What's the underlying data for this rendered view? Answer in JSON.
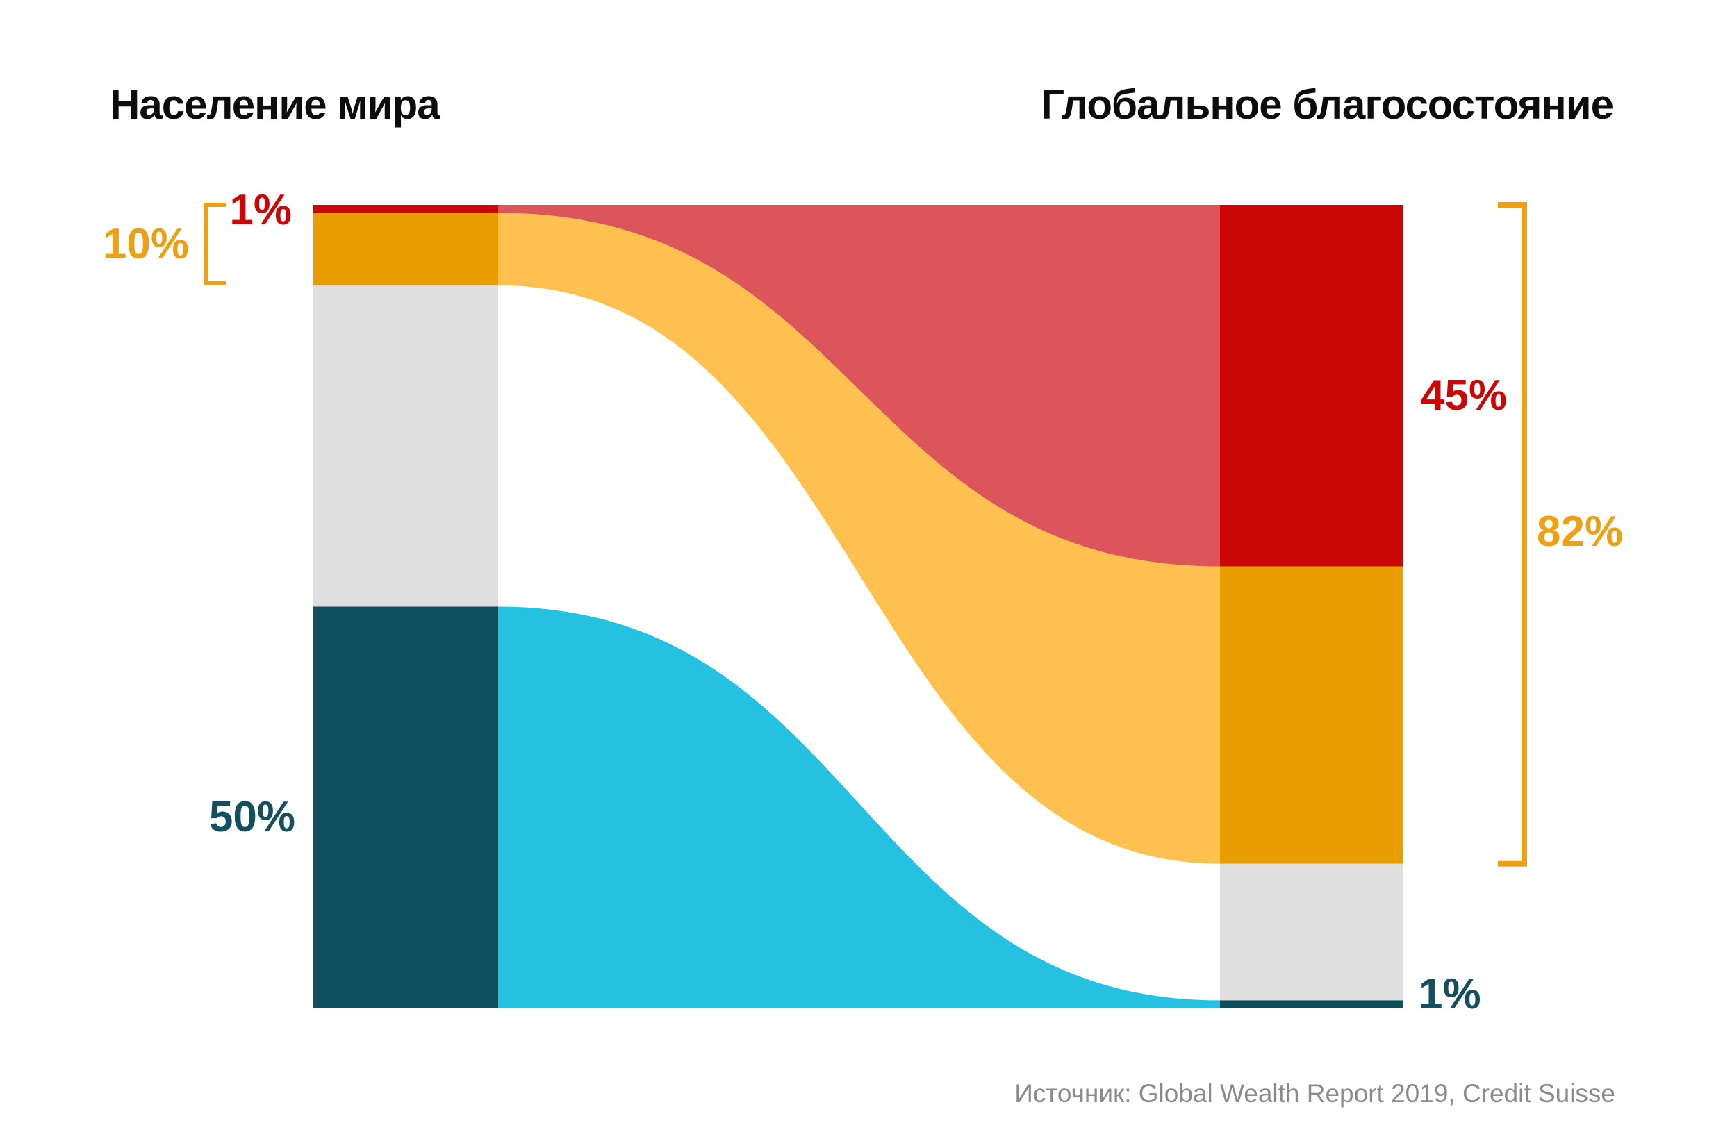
{
  "chart_data": {
    "type": "sankey",
    "title_left": "Население мира",
    "title_right": "Глобальное благосостояние",
    "source": "Источник: Global Wealth Report 2019, Credit Suisse",
    "left_axis_total_pct": 100,
    "right_axis_total_pct": 100,
    "groups": [
      {
        "id": "top-1-percent",
        "left_pct": 1,
        "right_pct": 45,
        "node_color": "#ca0606",
        "flow_color": "#dc555a",
        "has_flow": true
      },
      {
        "id": "next-9-percent",
        "left_pct": 9,
        "right_pct": 37,
        "node_color": "#e89e00",
        "flow_color": "#fec04f",
        "has_flow": true
      },
      {
        "id": "middle-40-percent",
        "left_pct": 40,
        "right_pct": 17,
        "node_color": "#dfdfdf",
        "flow_color": null,
        "has_flow": false
      },
      {
        "id": "bottom-50-percent",
        "left_pct": 50,
        "right_pct": 1,
        "node_color": "#0f4e5c",
        "flow_color": "#24c1e1",
        "has_flow": true
      }
    ],
    "labels": {
      "left_1": {
        "text": "1%",
        "color": "#ca0607"
      },
      "left_10": {
        "text": "10%",
        "color": "#eca012"
      },
      "left_50": {
        "text": "50%",
        "color": "#134f5e"
      },
      "right_45": {
        "text": "45%",
        "color": "#ca0607"
      },
      "right_82": {
        "text": "82%",
        "color": "#eca012"
      },
      "right_1": {
        "text": "1%",
        "color": "#134f5e"
      }
    },
    "brackets": {
      "left": {
        "covers_groups": [
          0,
          1
        ],
        "label": "10%",
        "color": "#eca012"
      },
      "right": {
        "covers_groups": [
          0,
          1
        ],
        "label": "82%",
        "color": "#eca012"
      }
    },
    "layout_hints": {
      "legend": "none",
      "grid": "off",
      "flow_style": "cubic-bezier, control points at horizontal midpoint"
    },
    "colors": {
      "title": "#0c0c0c",
      "source": "#8a8a8a",
      "background": "#ffffff"
    }
  }
}
